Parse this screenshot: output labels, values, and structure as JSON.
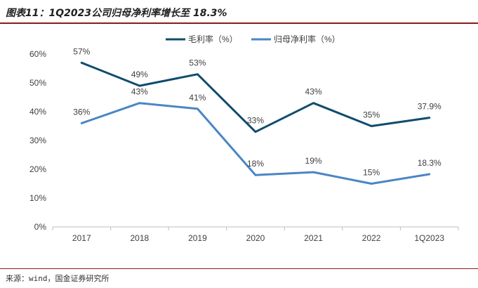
{
  "header": {
    "title": "图表11：1Q2023公司归母净利率增长至 18.3%"
  },
  "footer": {
    "source": "来源：wind，国金证券研究所"
  },
  "chart_data": {
    "type": "line",
    "categories": [
      "2017",
      "2018",
      "2019",
      "2020",
      "2021",
      "2022",
      "1Q2023"
    ],
    "ylim": [
      0,
      60
    ],
    "yticks": [
      "0%",
      "10%",
      "20%",
      "30%",
      "40%",
      "50%",
      "60%"
    ],
    "grid": false,
    "legend_position": "top",
    "series": [
      {
        "name": "毛利率（%）",
        "color": "#0f4c6e",
        "values": [
          57,
          49,
          53,
          33,
          43,
          35,
          37.9
        ],
        "labels": [
          "57%",
          "49%",
          "53%",
          "33%",
          "43%",
          "35%",
          "37.9%"
        ]
      },
      {
        "name": "归母净利率（%）",
        "color": "#4a86c5",
        "values": [
          36,
          43,
          41,
          18,
          19,
          15,
          18.3
        ],
        "labels": [
          "36%",
          "43%",
          "41%",
          "18%",
          "19%",
          "15%",
          "18.3%"
        ]
      }
    ]
  }
}
